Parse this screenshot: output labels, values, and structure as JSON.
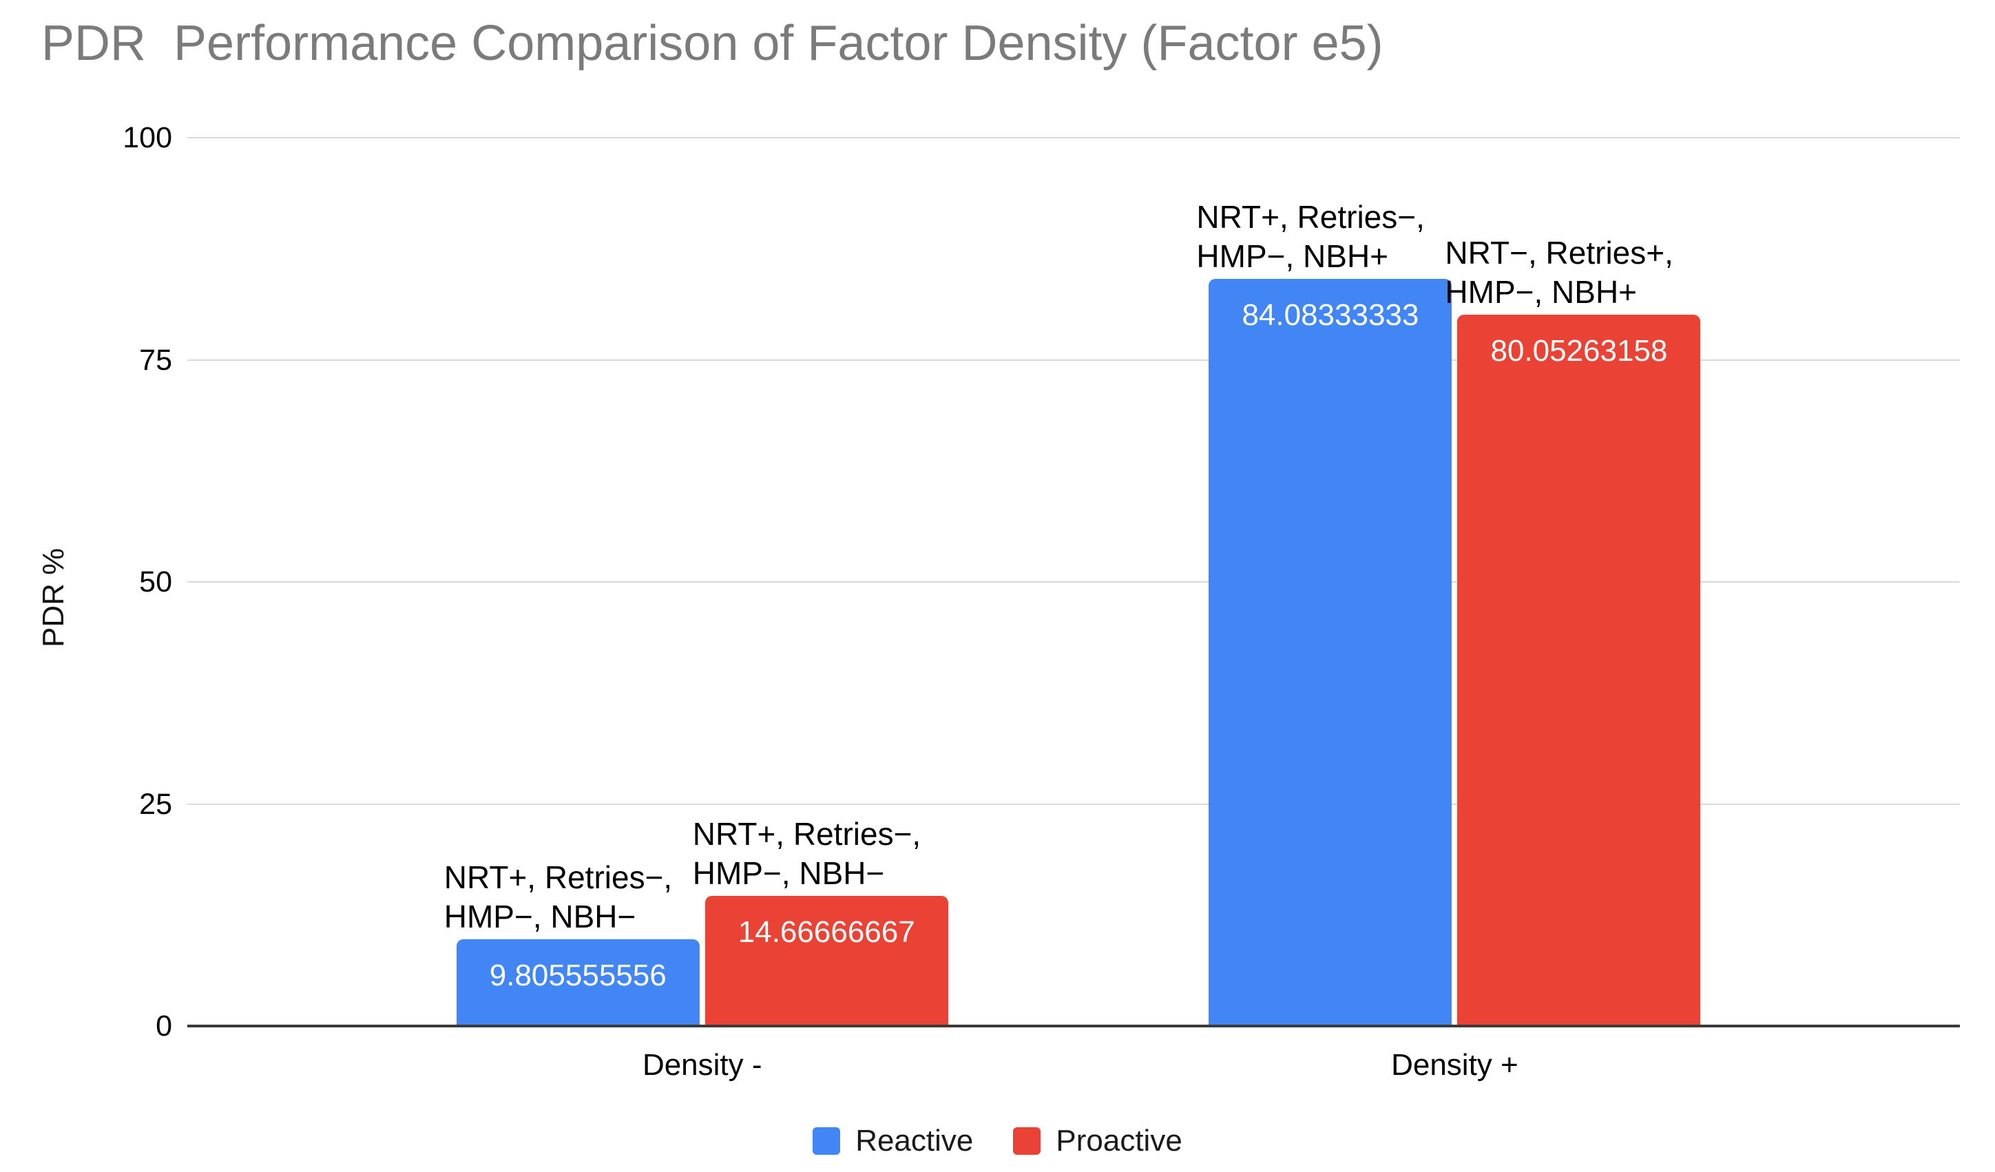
{
  "chart_data": {
    "type": "bar",
    "title": "PDR  Performance Comparison of Factor Density (Factor e5)",
    "xlabel": "",
    "ylabel": "PDR %",
    "ylim": [
      0,
      100
    ],
    "yticks": [
      0,
      25,
      50,
      75,
      100
    ],
    "grid": true,
    "legend_position": "bottom",
    "categories": [
      "Density -",
      "Density +"
    ],
    "series": [
      {
        "name": "Reactive",
        "color": "#4285F4",
        "values": [
          9.805555556,
          84.08333333
        ],
        "value_labels": [
          "9.805555556",
          "84.08333333"
        ],
        "annotations": [
          [
            "NRT+, Retries−,",
            "HMP−, NBH−"
          ],
          [
            "NRT+, Retries−,",
            "HMP−, NBH+"
          ]
        ]
      },
      {
        "name": "Proactive",
        "color": "#EA4335",
        "values": [
          14.66666667,
          80.05263158
        ],
        "value_labels": [
          "14.66666667",
          "80.05263158"
        ],
        "annotations": [
          [
            "NRT+, Retries−,",
            "HMP−, NBH−"
          ],
          [
            "NRT−, Retries+,",
            "HMP−, NBH+"
          ]
        ]
      }
    ],
    "colors": {
      "title_text": "#7b7b7b",
      "axis_text": "#000000",
      "gridline": "#d9d9d9",
      "zero_axis_line": "#3a3a3a",
      "bar_value_text": "#ffffff",
      "background": "#ffffff"
    }
  }
}
